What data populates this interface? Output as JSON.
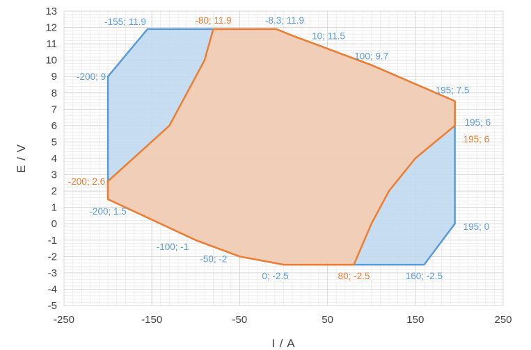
{
  "colors": {
    "blue_series": "#5b9bd5",
    "orange_series": "#ed7d31",
    "blue_fill": "#bdd7ee",
    "orange_fill": "#f8cbad",
    "grid": "#d9d9d9",
    "text": "#404040"
  },
  "chart_data": {
    "type": "area",
    "xlabel": "I / A",
    "ylabel": "E / V",
    "xlim": [
      -250,
      250
    ],
    "ylim": [
      -5,
      13
    ],
    "x_ticks": [
      "-250",
      "-150",
      "-50",
      "50",
      "150",
      "250"
    ],
    "x_tick_values": [
      -250,
      -150,
      -50,
      50,
      150,
      250
    ],
    "y_ticks": [
      "-5",
      "-4",
      "-3",
      "-2",
      "-1",
      "0",
      "1",
      "2",
      "3",
      "4",
      "5",
      "6",
      "7",
      "8",
      "9",
      "10",
      "11",
      "12",
      "13"
    ],
    "y_tick_values": [
      -5,
      -4,
      -3,
      -2,
      -1,
      0,
      1,
      2,
      3,
      4,
      5,
      6,
      7,
      8,
      9,
      10,
      11,
      12,
      13
    ],
    "grid": true,
    "series": [
      {
        "color": "#5b9bd5",
        "fill": "#bdd7ee",
        "points": [
          {
            "x": -155,
            "y": 11.9
          },
          {
            "x": -8.3,
            "y": 11.9
          },
          {
            "x": 10,
            "y": 11.5
          },
          {
            "x": 100,
            "y": 9.7
          },
          {
            "x": 195,
            "y": 7.5
          },
          {
            "x": 195,
            "y": 6
          },
          {
            "x": 195,
            "y": 0
          },
          {
            "x": 160,
            "y": -2.5
          },
          {
            "x": 0,
            "y": -2.5
          },
          {
            "x": -50,
            "y": -2
          },
          {
            "x": -100,
            "y": -1
          },
          {
            "x": -200,
            "y": 1.5
          },
          {
            "x": -200,
            "y": 9
          }
        ]
      },
      {
        "color": "#ed7d31",
        "fill": "#f8cbad",
        "points": [
          {
            "x": -80,
            "y": 11.9
          },
          {
            "x": -8.3,
            "y": 11.9
          },
          {
            "x": 10,
            "y": 11.5
          },
          {
            "x": 100,
            "y": 9.7
          },
          {
            "x": 195,
            "y": 7.5
          },
          {
            "x": 195,
            "y": 6
          },
          {
            "x": 150,
            "y": 4
          },
          {
            "x": 120,
            "y": 2
          },
          {
            "x": 100,
            "y": 0
          },
          {
            "x": 80,
            "y": -2.5
          },
          {
            "x": 0,
            "y": -2.5
          },
          {
            "x": -50,
            "y": -2
          },
          {
            "x": -100,
            "y": -1
          },
          {
            "x": -200,
            "y": 1.5
          },
          {
            "x": -200,
            "y": 2.6
          },
          {
            "x": -130,
            "y": 6
          },
          {
            "x": -90,
            "y": 10
          }
        ]
      }
    ],
    "point_labels": [
      {
        "text": "-155; 11.9",
        "x": -155,
        "y": 11.9,
        "color": "#5b9bd5"
      },
      {
        "text": "-80; 11.9",
        "x": -80,
        "y": 11.9,
        "color": "#ed7d31"
      },
      {
        "text": "-8.3; 11.9",
        "x": -8.3,
        "y": 11.9,
        "color": "#5b9bd5"
      },
      {
        "text": "10; 11.5",
        "x": 10,
        "y": 11.5,
        "color": "#5b9bd5"
      },
      {
        "text": "100; 9.7",
        "x": 100,
        "y": 9.7,
        "color": "#5b9bd5"
      },
      {
        "text": "195; 7.5",
        "x": 195,
        "y": 7.5,
        "color": "#5b9bd5"
      },
      {
        "text": "195; 6",
        "x": 195,
        "y": 6,
        "color": "#5b9bd5"
      },
      {
        "text": "195; 6",
        "x": 195,
        "y": 6,
        "color": "#ed7d31"
      },
      {
        "text": "195; 0",
        "x": 195,
        "y": 0,
        "color": "#5b9bd5"
      },
      {
        "text": "160; -2.5",
        "x": 160,
        "y": -2.5,
        "color": "#5b9bd5"
      },
      {
        "text": "80; -2.5",
        "x": 80,
        "y": -2.5,
        "color": "#ed7d31"
      },
      {
        "text": "0; -2.5",
        "x": 0,
        "y": -2.5,
        "color": "#5b9bd5"
      },
      {
        "text": "-50; -2",
        "x": -50,
        "y": -2,
        "color": "#5b9bd5"
      },
      {
        "text": "-100; -1",
        "x": -100,
        "y": -1,
        "color": "#5b9bd5"
      },
      {
        "text": "-200; 1.5",
        "x": -200,
        "y": 1.5,
        "color": "#5b9bd5"
      },
      {
        "text": "-200; 2.6",
        "x": -200,
        "y": 2.6,
        "color": "#ed7d31"
      },
      {
        "text": "-200; 9",
        "x": -200,
        "y": 9,
        "color": "#5b9bd5"
      }
    ]
  }
}
